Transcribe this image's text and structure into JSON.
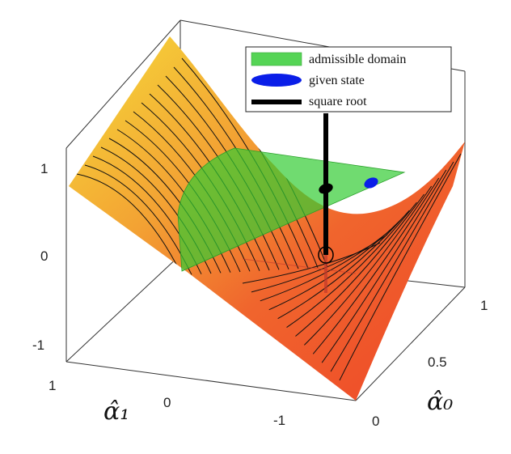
{
  "chart_data": {
    "type": "surface3d",
    "title": "",
    "axes": {
      "x": {
        "label": "α̂₁",
        "ticks": [
          "1",
          "0",
          "-1"
        ]
      },
      "y": {
        "label": "α̂₀",
        "ticks": [
          "0",
          "0.5",
          "1"
        ]
      },
      "z": {
        "label": "",
        "ticks": [
          "1",
          "0",
          "-1"
        ]
      }
    },
    "legend": {
      "placement": "top-right",
      "entries": [
        {
          "label": "admissible domain",
          "color": "#55d455"
        },
        {
          "label": "given state",
          "color": "#0a1ee8"
        },
        {
          "label": "square root",
          "color": "#000000"
        }
      ]
    },
    "colors": {
      "surface_high": "#f6dc3a",
      "surface_mid": "#f28a2e",
      "surface_low": "#f04a2c",
      "admissible_plane": "#33cc33",
      "contour": "#111111"
    }
  }
}
